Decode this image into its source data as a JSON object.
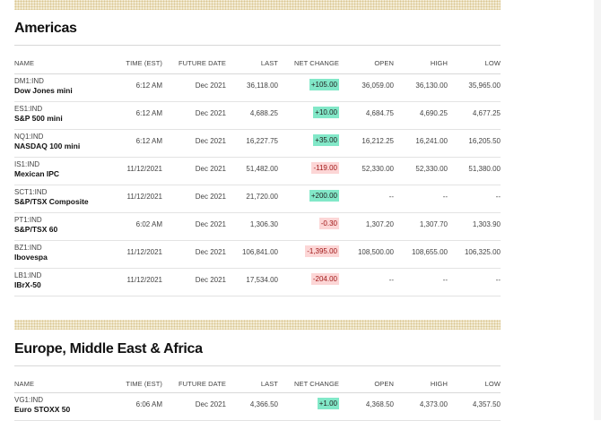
{
  "americas": {
    "title": "Americas",
    "headers": {
      "name": "NAME",
      "time": "TIME (EST)",
      "future_date": "FUTURE DATE",
      "last": "LAST",
      "net_change": "NET CHANGE",
      "open": "OPEN",
      "high": "HIGH",
      "low": "LOW"
    },
    "rows": [
      {
        "symbol": "DM1:IND",
        "name": "Dow Jones mini",
        "time": "6:12 AM",
        "future_date": "Dec 2021",
        "last": "36,118.00",
        "net_change": "+105.00",
        "direction": "up",
        "open": "36,059.00",
        "high": "36,130.00",
        "low": "35,965.00"
      },
      {
        "symbol": "ES1:IND",
        "name": "S&P 500 mini",
        "time": "6:12 AM",
        "future_date": "Dec 2021",
        "last": "4,688.25",
        "net_change": "+10.00",
        "direction": "up",
        "open": "4,684.75",
        "high": "4,690.25",
        "low": "4,677.25"
      },
      {
        "symbol": "NQ1:IND",
        "name": "NASDAQ 100 mini",
        "time": "6:12 AM",
        "future_date": "Dec 2021",
        "last": "16,227.75",
        "net_change": "+35.00",
        "direction": "up",
        "open": "16,212.25",
        "high": "16,241.00",
        "low": "16,205.50"
      },
      {
        "symbol": "IS1:IND",
        "name": "Mexican IPC",
        "time": "11/12/2021",
        "future_date": "Dec 2021",
        "last": "51,482.00",
        "net_change": "-119.00",
        "direction": "down",
        "open": "52,330.00",
        "high": "52,330.00",
        "low": "51,380.00"
      },
      {
        "symbol": "SCT1:IND",
        "name": "S&P/TSX Composite",
        "time": "11/12/2021",
        "future_date": "Dec 2021",
        "last": "21,720.00",
        "net_change": "+200.00",
        "direction": "up",
        "open": "--",
        "high": "--",
        "low": "--"
      },
      {
        "symbol": "PT1:IND",
        "name": "S&P/TSX 60",
        "time": "6:02 AM",
        "future_date": "Dec 2021",
        "last": "1,306.30",
        "net_change": "-0.30",
        "direction": "down",
        "open": "1,307.20",
        "high": "1,307.70",
        "low": "1,303.90"
      },
      {
        "symbol": "BZ1:IND",
        "name": "Ibovespa",
        "time": "11/12/2021",
        "future_date": "Dec 2021",
        "last": "106,841.00",
        "net_change": "-1,395.00",
        "direction": "down",
        "open": "108,500.00",
        "high": "108,655.00",
        "low": "106,325.00"
      },
      {
        "symbol": "LB1:IND",
        "name": "IBrX-50",
        "time": "11/12/2021",
        "future_date": "Dec 2021",
        "last": "17,534.00",
        "net_change": "-204.00",
        "direction": "down",
        "open": "--",
        "high": "--",
        "low": "--"
      }
    ]
  },
  "emea": {
    "title": "Europe, Middle East & Africa",
    "headers": {
      "name": "NAME",
      "time": "TIME (EST)",
      "future_date": "FUTURE DATE",
      "last": "LAST",
      "net_change": "NET CHANGE",
      "open": "OPEN",
      "high": "HIGH",
      "low": "LOW"
    },
    "rows": [
      {
        "symbol": "VG1:IND",
        "name": "Euro STOXX 50",
        "time": "6:06 AM",
        "future_date": "Dec 2021",
        "last": "4,366.50",
        "net_change": "+1.00",
        "direction": "up",
        "open": "4,368.50",
        "high": "4,373.00",
        "low": "4,357.50"
      }
    ]
  }
}
